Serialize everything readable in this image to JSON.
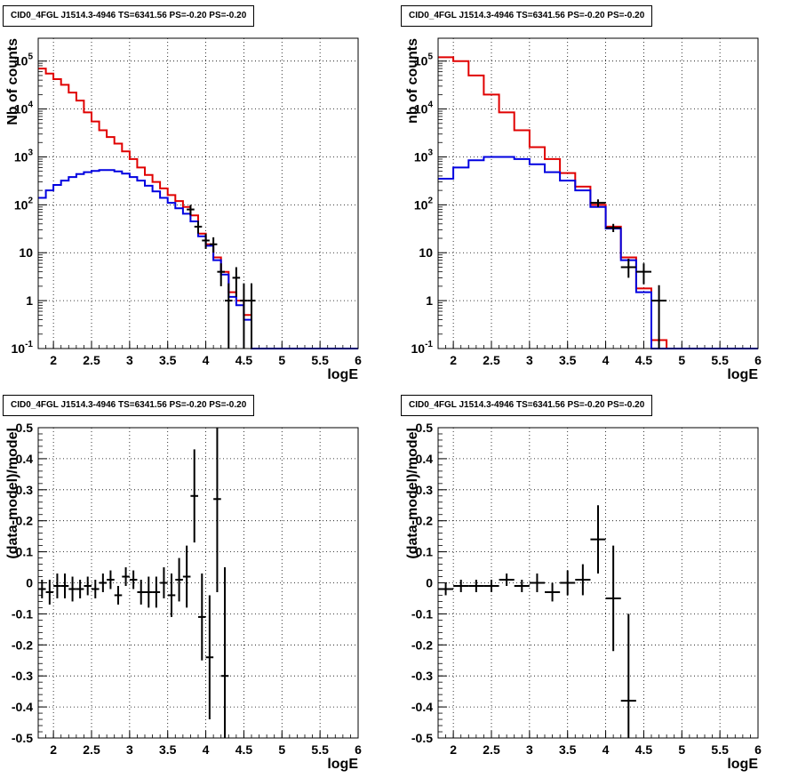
{
  "chart_data": [
    {
      "type": "line",
      "title": "CID0_4FGL J1514.3-4946 TS=6341.56 PS=-0.20 PS=-0.20",
      "xlabel": "logE",
      "ylabel": "Nb of counts",
      "xlim": [
        1.8,
        6.0
      ],
      "ylim": [
        0.1,
        300000
      ],
      "yscale": "log",
      "grid": true,
      "xticks": [
        "2",
        "2.5",
        "3",
        "3.5",
        "4",
        "4.5",
        "5",
        "5.5",
        "6"
      ],
      "yticks": [
        "10^-1",
        "1",
        "10",
        "10^2",
        "10^3",
        "10^4",
        "10^5"
      ],
      "bin_edges": [
        1.8,
        1.9,
        2.0,
        2.1,
        2.2,
        2.3,
        2.4,
        2.5,
        2.6,
        2.7,
        2.8,
        2.9,
        3.0,
        3.1,
        3.2,
        3.3,
        3.4,
        3.5,
        3.6,
        3.7,
        3.8,
        3.9,
        4.0,
        4.1,
        4.2,
        4.3,
        4.4,
        4.5,
        4.6,
        4.7,
        4.8,
        4.9,
        5.0,
        5.1,
        5.2,
        5.3,
        5.4,
        5.5,
        5.6,
        5.7,
        5.8,
        5.9,
        6.0
      ],
      "series": [
        {
          "color": "#e00000",
          "values": [
            70000,
            55000,
            42000,
            32000,
            22000,
            15000,
            8500,
            5500,
            3600,
            2600,
            1900,
            1300,
            900,
            600,
            420,
            300,
            220,
            160,
            120,
            90,
            60,
            25,
            15,
            8,
            4,
            1.5,
            1,
            0.5,
            0.1,
            0.1,
            0.1,
            0.1,
            0.1,
            0.1,
            0.1,
            0.1,
            0.1,
            0.1,
            0.1,
            0.1,
            0.1,
            0.1
          ]
        },
        {
          "color": "#0000e0",
          "values": [
            140,
            200,
            260,
            320,
            380,
            440,
            480,
            510,
            530,
            530,
            500,
            450,
            380,
            320,
            250,
            190,
            140,
            110,
            85,
            65,
            45,
            22,
            14,
            7,
            3.5,
            1.2,
            0.8,
            0.4,
            0.1,
            0.1,
            0.1,
            0.1,
            0.1,
            0.1,
            0.1,
            0.1,
            0.1,
            0.1,
            0.1,
            0.1,
            0.1,
            0.1
          ]
        }
      ],
      "points": [
        {
          "x": 3.8,
          "y": 80,
          "ylo": 60,
          "yhi": 100
        },
        {
          "x": 3.9,
          "y": 35,
          "ylo": 25,
          "yhi": 46
        },
        {
          "x": 4.0,
          "y": 18,
          "ylo": 12,
          "yhi": 25
        },
        {
          "x": 4.1,
          "y": 15,
          "ylo": 10,
          "yhi": 21
        },
        {
          "x": 4.2,
          "y": 4,
          "ylo": 2,
          "yhi": 6
        },
        {
          "x": 4.3,
          "y": 1,
          "ylo": 0.1,
          "yhi": 2.3
        },
        {
          "x": 4.4,
          "y": 3,
          "ylo": 1.2,
          "yhi": 5
        },
        {
          "x": 4.5,
          "y": 1,
          "ylo": 0.1,
          "yhi": 2.3
        },
        {
          "x": 4.6,
          "y": 1,
          "ylo": 0.1,
          "yhi": 2.3
        }
      ],
      "point_xerr": 0.05
    },
    {
      "type": "line",
      "title": "CID0_4FGL J1514.3-4946 TS=6341.56 PS=-0.20 PS=-0.20",
      "xlabel": "logE",
      "ylabel": "nb of counts",
      "xlim": [
        1.8,
        6.0
      ],
      "ylim": [
        0.1,
        300000
      ],
      "yscale": "log",
      "grid": true,
      "xticks": [
        "2",
        "2.5",
        "3",
        "3.5",
        "4",
        "4.5",
        "5",
        "5.5",
        "6"
      ],
      "yticks": [
        "10^-1",
        "1",
        "10",
        "10^2",
        "10^3",
        "10^4",
        "10^5"
      ],
      "bin_edges": [
        1.8,
        2.0,
        2.2,
        2.4,
        2.6,
        2.8,
        3.0,
        3.2,
        3.4,
        3.6,
        3.8,
        4.0,
        4.2,
        4.4,
        4.6,
        4.8,
        5.0,
        5.2,
        5.4,
        5.6,
        5.8,
        6.0
      ],
      "series": [
        {
          "color": "#e00000",
          "values": [
            120000,
            100000,
            50000,
            20000,
            8500,
            3600,
            1600,
            900,
            460,
            240,
            100,
            35,
            8,
            1.8,
            0.15,
            0.1,
            0.1,
            0.1,
            0.1,
            0.1,
            0.1
          ]
        },
        {
          "color": "#0000e0",
          "values": [
            350,
            600,
            850,
            1000,
            1000,
            900,
            700,
            480,
            320,
            200,
            90,
            32,
            7,
            1.5,
            0.1,
            0.1,
            0.1,
            0.1,
            0.1,
            0.1,
            0.1
          ]
        }
      ],
      "points": [
        {
          "x": 3.9,
          "y": 110,
          "ylo": 90,
          "yhi": 130
        },
        {
          "x": 4.1,
          "y": 33,
          "ylo": 27,
          "yhi": 40
        },
        {
          "x": 4.3,
          "y": 5,
          "ylo": 3,
          "yhi": 7.5
        },
        {
          "x": 4.5,
          "y": 4,
          "ylo": 2.2,
          "yhi": 6
        },
        {
          "x": 4.7,
          "y": 1,
          "ylo": 0.1,
          "yhi": 2.1
        }
      ],
      "point_xerr": 0.1
    },
    {
      "type": "scatter",
      "title": "CID0_4FGL J1514.3-4946 TS=6341.56 PS=-0.20 PS=-0.20",
      "xlabel": "logE",
      "ylabel": "(data-model)/model",
      "xlim": [
        1.8,
        6.0
      ],
      "ylim": [
        -0.5,
        0.5
      ],
      "grid": true,
      "xticks": [
        "2",
        "2.5",
        "3",
        "3.5",
        "4",
        "4.5",
        "5",
        "5.5",
        "6"
      ],
      "yticks": [
        "-0.5",
        "-0.4",
        "-0.3",
        "-0.2",
        "-0.1",
        "0",
        "0.1",
        "0.2",
        "0.3",
        "0.4",
        "0.5"
      ],
      "points": [
        {
          "x": 1.85,
          "y": -0.02,
          "err": 0.03
        },
        {
          "x": 1.95,
          "y": -0.03,
          "err": 0.04
        },
        {
          "x": 2.05,
          "y": -0.01,
          "err": 0.04
        },
        {
          "x": 2.15,
          "y": -0.01,
          "err": 0.04
        },
        {
          "x": 2.25,
          "y": -0.02,
          "err": 0.04
        },
        {
          "x": 2.35,
          "y": -0.02,
          "err": 0.03
        },
        {
          "x": 2.45,
          "y": -0.01,
          "err": 0.03
        },
        {
          "x": 2.55,
          "y": -0.02,
          "err": 0.03
        },
        {
          "x": 2.65,
          "y": 0.0,
          "err": 0.03
        },
        {
          "x": 2.75,
          "y": 0.01,
          "err": 0.03
        },
        {
          "x": 2.85,
          "y": -0.04,
          "err": 0.03
        },
        {
          "x": 2.95,
          "y": 0.02,
          "err": 0.03
        },
        {
          "x": 3.05,
          "y": 0.01,
          "err": 0.03
        },
        {
          "x": 3.15,
          "y": -0.03,
          "err": 0.04
        },
        {
          "x": 3.25,
          "y": -0.03,
          "err": 0.05
        },
        {
          "x": 3.35,
          "y": -0.03,
          "err": 0.05
        },
        {
          "x": 3.45,
          "y": 0.0,
          "err": 0.05
        },
        {
          "x": 3.55,
          "y": -0.04,
          "err": 0.07
        },
        {
          "x": 3.65,
          "y": 0.01,
          "err": 0.07
        },
        {
          "x": 3.75,
          "y": 0.02,
          "err": 0.1
        },
        {
          "x": 3.85,
          "y": 0.28,
          "err": 0.15
        },
        {
          "x": 3.95,
          "y": -0.11,
          "err": 0.14
        },
        {
          "x": 4.05,
          "y": -0.24,
          "err": 0.2
        },
        {
          "x": 4.15,
          "y": 0.27,
          "err": 0.3
        },
        {
          "x": 4.25,
          "y": -0.3,
          "err": 0.35
        }
      ],
      "point_xerr": 0.05
    },
    {
      "type": "scatter",
      "title": "CID0_4FGL J1514.3-4946 TS=6341.56 PS=-0.20 PS=-0.20",
      "xlabel": "logE",
      "ylabel": "(data-model)/model",
      "xlim": [
        1.8,
        6.0
      ],
      "ylim": [
        -0.5,
        0.5
      ],
      "grid": true,
      "xticks": [
        "2",
        "2.5",
        "3",
        "3.5",
        "4",
        "4.5",
        "5",
        "5.5",
        "6"
      ],
      "yticks": [
        "-0.5",
        "-0.4",
        "-0.3",
        "-0.2",
        "-0.1",
        "0",
        "0.1",
        "0.2",
        "0.3",
        "0.4",
        "0.5"
      ],
      "points": [
        {
          "x": 1.9,
          "y": -0.02,
          "err": 0.02
        },
        {
          "x": 2.1,
          "y": -0.01,
          "err": 0.02
        },
        {
          "x": 2.3,
          "y": -0.01,
          "err": 0.02
        },
        {
          "x": 2.5,
          "y": -0.01,
          "err": 0.02
        },
        {
          "x": 2.7,
          "y": 0.01,
          "err": 0.02
        },
        {
          "x": 2.9,
          "y": -0.01,
          "err": 0.02
        },
        {
          "x": 3.1,
          "y": 0.0,
          "err": 0.03
        },
        {
          "x": 3.3,
          "y": -0.03,
          "err": 0.03
        },
        {
          "x": 3.5,
          "y": 0.0,
          "err": 0.04
        },
        {
          "x": 3.7,
          "y": 0.01,
          "err": 0.05
        },
        {
          "x": 3.9,
          "y": 0.14,
          "err": 0.11
        },
        {
          "x": 4.1,
          "y": -0.05,
          "err": 0.17
        },
        {
          "x": 4.3,
          "y": -0.38,
          "err": 0.28
        }
      ],
      "point_xerr": 0.1
    }
  ]
}
